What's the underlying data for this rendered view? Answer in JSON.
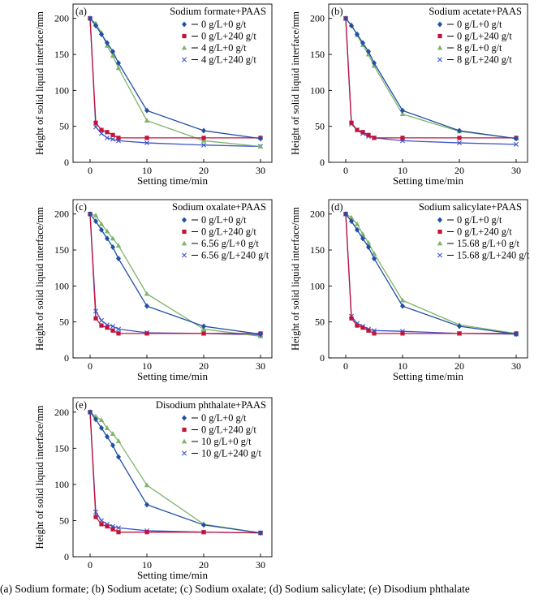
{
  "colors": {
    "blue": "#1f4fa6",
    "red": "#c0143c",
    "green": "#7fb26a",
    "cross": "#3b54c8"
  },
  "caption": "(a)    Sodium formate;   (b)    Sodium    acetate;   (c)    Sodium oxalate;  (d) Sodium  salicylate;  (e) Disodium phthalate",
  "chart_data": [
    {
      "id": "a",
      "panel_label": "(a)",
      "title": "Sodium formate+PAAS",
      "type": "line",
      "xlabel": "Setting time/min",
      "ylabel": "Height of solid liquid interface/mm",
      "xlim": [
        -3,
        32
      ],
      "ylim": [
        0,
        220
      ],
      "xticks": [
        0,
        10,
        20,
        30
      ],
      "yticks": [
        0,
        50,
        100,
        150,
        200
      ],
      "grid": false,
      "legend_position": "top-right",
      "series": [
        {
          "name": "0 g/L+0 g/t",
          "color": "#1f4fa6",
          "marker": "diamond",
          "x": [
            0,
            1,
            2,
            3,
            4,
            5,
            10,
            20,
            30
          ],
          "y": [
            200,
            190,
            178,
            166,
            154,
            138,
            72,
            44,
            33
          ]
        },
        {
          "name": "0 g/L+240 g/t",
          "color": "#c0143c",
          "marker": "square",
          "x": [
            0,
            1,
            2,
            3,
            4,
            5,
            10,
            20,
            30
          ],
          "y": [
            200,
            55,
            45,
            42,
            38,
            34,
            34,
            34,
            34
          ]
        },
        {
          "name": "4 g/L+0 g/t",
          "color": "#7fb26a",
          "marker": "triangle",
          "x": [
            0,
            1,
            2,
            3,
            4,
            5,
            10,
            20,
            30
          ],
          "y": [
            200,
            193,
            180,
            162,
            148,
            131,
            58,
            30,
            22
          ]
        },
        {
          "name": "4 g/L+240 g/t",
          "color": "#3b54c8",
          "marker": "x",
          "x": [
            0,
            1,
            2,
            3,
            4,
            5,
            10,
            20,
            30
          ],
          "y": [
            200,
            49,
            40,
            34,
            32,
            30,
            27,
            24,
            22
          ]
        }
      ]
    },
    {
      "id": "b",
      "panel_label": "(b)",
      "title": "Sodium acetate+PAAS",
      "type": "line",
      "xlabel": "Setting time/min",
      "ylabel": "Height of solid liquid interface/mm",
      "xlim": [
        -3,
        32
      ],
      "ylim": [
        0,
        220
      ],
      "xticks": [
        0,
        10,
        20,
        30
      ],
      "yticks": [
        0,
        50,
        100,
        150,
        200
      ],
      "grid": false,
      "legend_position": "top-right",
      "series": [
        {
          "name": "0 g/L+0 g/t",
          "color": "#1f4fa6",
          "marker": "diamond",
          "x": [
            0,
            1,
            2,
            3,
            4,
            5,
            10,
            20,
            30
          ],
          "y": [
            200,
            190,
            178,
            166,
            154,
            138,
            72,
            44,
            33
          ]
        },
        {
          "name": "0 g/L+240 g/t",
          "color": "#c0143c",
          "marker": "square",
          "x": [
            0,
            1,
            2,
            3,
            4,
            5,
            10,
            20,
            30
          ],
          "y": [
            200,
            55,
            45,
            42,
            38,
            34,
            34,
            34,
            34
          ]
        },
        {
          "name": "8 g/L+0 g/t",
          "color": "#7fb26a",
          "marker": "triangle",
          "x": [
            0,
            1,
            2,
            3,
            4,
            5,
            10,
            20,
            30
          ],
          "y": [
            200,
            191,
            177,
            163,
            150,
            134,
            67,
            43,
            33
          ]
        },
        {
          "name": "8 g/L+240 g/t",
          "color": "#3b54c8",
          "marker": "x",
          "x": [
            0,
            1,
            2,
            3,
            4,
            5,
            10,
            20,
            30
          ],
          "y": [
            200,
            53,
            45,
            40,
            36,
            34,
            30,
            27,
            25
          ]
        }
      ]
    },
    {
      "id": "c",
      "panel_label": "(c)",
      "title": "Sodium oxalate+PAAS",
      "type": "line",
      "xlabel": "Setting time/min",
      "ylabel": "Height of solid liquid interface/mm",
      "xlim": [
        -3,
        32
      ],
      "ylim": [
        0,
        220
      ],
      "xticks": [
        0,
        10,
        20,
        30
      ],
      "yticks": [
        0,
        50,
        100,
        150,
        200
      ],
      "grid": false,
      "legend_position": "top-right",
      "series": [
        {
          "name": "0 g/L+0 g/t",
          "color": "#1f4fa6",
          "marker": "diamond",
          "x": [
            0,
            1,
            2,
            3,
            4,
            5,
            10,
            20,
            30
          ],
          "y": [
            200,
            190,
            178,
            166,
            154,
            138,
            72,
            44,
            33
          ]
        },
        {
          "name": "0 g/L+240 g/t",
          "color": "#c0143c",
          "marker": "square",
          "x": [
            0,
            1,
            2,
            3,
            4,
            5,
            10,
            20,
            30
          ],
          "y": [
            200,
            55,
            45,
            42,
            38,
            34,
            34,
            34,
            34
          ]
        },
        {
          "name": "6.56 g/L+0 g/t",
          "color": "#7fb26a",
          "marker": "triangle",
          "x": [
            0,
            1,
            2,
            3,
            4,
            5,
            10,
            20,
            30
          ],
          "y": [
            200,
            198,
            186,
            176,
            166,
            156,
            89,
            40,
            30
          ]
        },
        {
          "name": "6.56 g/L+240 g/t",
          "color": "#3b54c8",
          "marker": "x",
          "x": [
            0,
            1,
            2,
            3,
            4,
            5,
            10,
            20,
            30
          ],
          "y": [
            200,
            65,
            52,
            46,
            44,
            40,
            35,
            34,
            32
          ]
        }
      ]
    },
    {
      "id": "d",
      "panel_label": "(d)",
      "title": "Sodium salicylate+PAAS",
      "type": "line",
      "xlabel": "Setting time/min",
      "ylabel": "Height of solid liquid interface/mm",
      "xlim": [
        -3,
        32
      ],
      "ylim": [
        0,
        220
      ],
      "xticks": [
        0,
        10,
        20,
        30
      ],
      "yticks": [
        0,
        50,
        100,
        150,
        200
      ],
      "grid": false,
      "legend_position": "top-right",
      "series": [
        {
          "name": "0 g/L+0 g/t",
          "color": "#1f4fa6",
          "marker": "diamond",
          "x": [
            0,
            1,
            2,
            3,
            4,
            5,
            10,
            20,
            30
          ],
          "y": [
            200,
            190,
            178,
            166,
            154,
            138,
            72,
            44,
            33
          ]
        },
        {
          "name": "0 g/L+240 g/t",
          "color": "#c0143c",
          "marker": "square",
          "x": [
            0,
            1,
            2,
            3,
            4,
            5,
            10,
            20,
            30
          ],
          "y": [
            200,
            55,
            45,
            42,
            38,
            34,
            34,
            34,
            34
          ]
        },
        {
          "name": "15.68 g/L+0 g/t",
          "color": "#7fb26a",
          "marker": "triangle",
          "x": [
            0,
            1,
            2,
            3,
            4,
            5,
            10,
            20,
            30
          ],
          "y": [
            200,
            195,
            186,
            172,
            160,
            145,
            80,
            46,
            34
          ]
        },
        {
          "name": "15.68 g/L+240 g/t",
          "color": "#3b54c8",
          "marker": "x",
          "x": [
            0,
            1,
            2,
            3,
            4,
            5,
            10,
            20,
            30
          ],
          "y": [
            200,
            58,
            48,
            44,
            40,
            38,
            37,
            34,
            33
          ]
        }
      ]
    },
    {
      "id": "e",
      "panel_label": "(e)",
      "title": "Disodium phthalate+PAAS",
      "type": "line",
      "xlabel": "Setting time/min",
      "ylabel": "Height of solid liquid interface/mm",
      "xlim": [
        -3,
        32
      ],
      "ylim": [
        0,
        220
      ],
      "xticks": [
        0,
        10,
        20,
        30
      ],
      "yticks": [
        0,
        50,
        100,
        150,
        200
      ],
      "grid": false,
      "legend_position": "top-right",
      "series": [
        {
          "name": "0 g/L+0 g/t",
          "color": "#1f4fa6",
          "marker": "diamond",
          "x": [
            0,
            1,
            2,
            3,
            4,
            5,
            10,
            20,
            30
          ],
          "y": [
            200,
            190,
            178,
            166,
            154,
            138,
            72,
            44,
            33
          ]
        },
        {
          "name": "0 g/L+240 g/t",
          "color": "#c0143c",
          "marker": "square",
          "x": [
            0,
            1,
            2,
            3,
            4,
            5,
            10,
            20,
            30
          ],
          "y": [
            200,
            55,
            45,
            42,
            38,
            34,
            34,
            34,
            33
          ]
        },
        {
          "name": "10 g/L+0 g/t",
          "color": "#7fb26a",
          "marker": "triangle",
          "x": [
            0,
            1,
            2,
            3,
            4,
            5,
            10,
            20,
            30
          ],
          "y": [
            200,
            194,
            189,
            178,
            170,
            160,
            99,
            45,
            33
          ]
        },
        {
          "name": "10 g/L+240 g/t",
          "color": "#3b54c8",
          "marker": "x",
          "x": [
            0,
            1,
            2,
            3,
            4,
            5,
            10,
            20,
            30
          ],
          "y": [
            200,
            62,
            50,
            45,
            42,
            40,
            36,
            34,
            33
          ]
        }
      ]
    }
  ]
}
